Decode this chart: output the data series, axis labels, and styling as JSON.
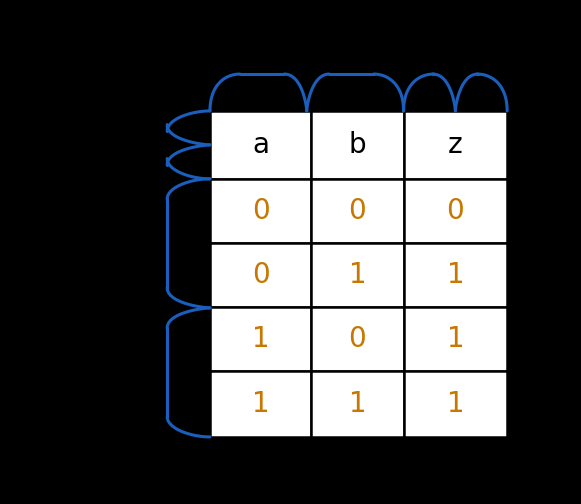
{
  "headers": [
    "a",
    "b",
    "z"
  ],
  "rows": [
    [
      "0",
      "0",
      "0"
    ],
    [
      "0",
      "1",
      "1"
    ],
    [
      "1",
      "0",
      "1"
    ],
    [
      "1",
      "1",
      "1"
    ]
  ],
  "header_color": "#000000",
  "data_color": "#c87800",
  "cell_bg": "#ffffff",
  "brace_color": "#1a5fbd",
  "col_splits": [
    0.305,
    0.53,
    0.735,
    0.965
  ],
  "row_splits": [
    0.87,
    0.695,
    0.53,
    0.365,
    0.2,
    0.03
  ],
  "header_fontsize": 20,
  "data_fontsize": 20,
  "brace_lw": 2.2
}
